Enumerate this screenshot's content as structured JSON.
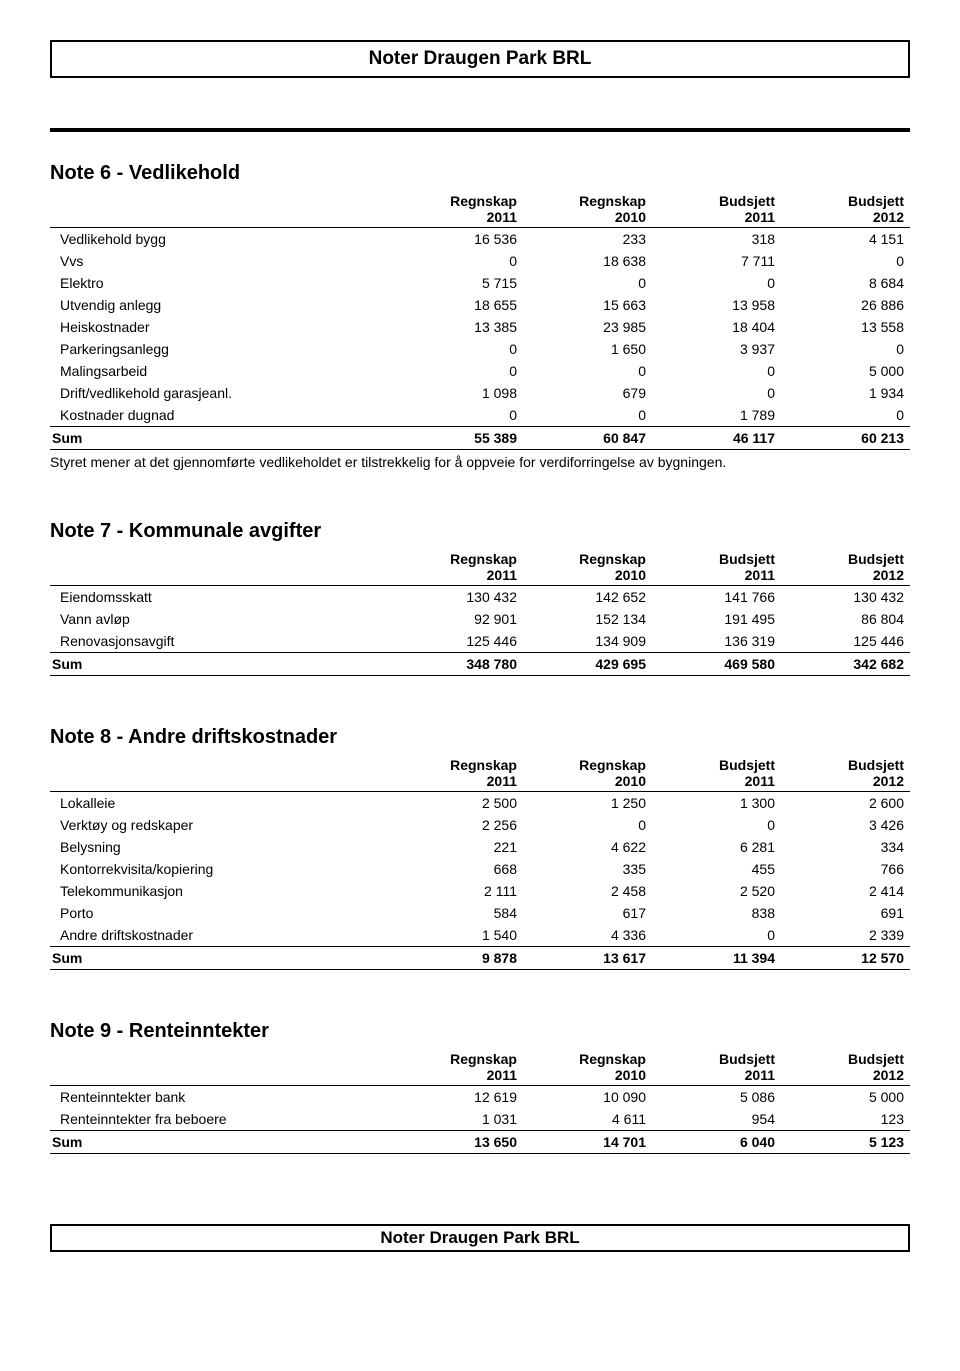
{
  "header_title": "Noter Draugen Park BRL",
  "footer_title": "Noter Draugen Park BRL",
  "columns": [
    {
      "line1": "Regnskap",
      "line2": "2011"
    },
    {
      "line1": "Regnskap",
      "line2": "2010"
    },
    {
      "line1": "Budsjett",
      "line2": "2011"
    },
    {
      "line1": "Budsjett",
      "line2": "2012"
    }
  ],
  "note6": {
    "title": "Note 6 - Vedlikehold",
    "rows": [
      {
        "label": "Vedlikehold bygg",
        "v": [
          "16 536",
          "233",
          "318",
          "4 151"
        ]
      },
      {
        "label": "Vvs",
        "v": [
          "0",
          "18 638",
          "7 711",
          "0"
        ]
      },
      {
        "label": "Elektro",
        "v": [
          "5 715",
          "0",
          "0",
          "8 684"
        ]
      },
      {
        "label": "Utvendig anlegg",
        "v": [
          "18 655",
          "15 663",
          "13 958",
          "26 886"
        ]
      },
      {
        "label": "Heiskostnader",
        "v": [
          "13 385",
          "23 985",
          "18 404",
          "13 558"
        ]
      },
      {
        "label": "Parkeringsanlegg",
        "v": [
          "0",
          "1 650",
          "3 937",
          "0"
        ]
      },
      {
        "label": "Malingsarbeid",
        "v": [
          "0",
          "0",
          "0",
          "5 000"
        ]
      },
      {
        "label": "Drift/vedlikehold garasjeanl.",
        "v": [
          "1 098",
          "679",
          "0",
          "1 934"
        ]
      },
      {
        "label": "Kostnader dugnad",
        "v": [
          "0",
          "0",
          "1 789",
          "0"
        ]
      }
    ],
    "sum": {
      "label": "Sum",
      "v": [
        "55 389",
        "60 847",
        "46 117",
        "60 213"
      ]
    },
    "footnote": "Styret mener at det gjennomførte vedlikeholdet er tilstrekkelig for å oppveie for verdiforringelse av bygningen."
  },
  "note7": {
    "title": "Note 7 - Kommunale avgifter",
    "rows": [
      {
        "label": "Eiendomsskatt",
        "v": [
          "130 432",
          "142 652",
          "141 766",
          "130 432"
        ]
      },
      {
        "label": "Vann avløp",
        "v": [
          "92 901",
          "152 134",
          "191 495",
          "86 804"
        ]
      },
      {
        "label": "Renovasjonsavgift",
        "v": [
          "125 446",
          "134 909",
          "136 319",
          "125 446"
        ]
      }
    ],
    "sum": {
      "label": "Sum",
      "v": [
        "348 780",
        "429 695",
        "469 580",
        "342 682"
      ]
    }
  },
  "note8": {
    "title": "Note 8 - Andre driftskostnader",
    "rows": [
      {
        "label": "Lokalleie",
        "v": [
          "2 500",
          "1 250",
          "1 300",
          "2 600"
        ]
      },
      {
        "label": "Verktøy og redskaper",
        "v": [
          "2 256",
          "0",
          "0",
          "3 426"
        ]
      },
      {
        "label": "Belysning",
        "v": [
          "221",
          "4 622",
          "6 281",
          "334"
        ]
      },
      {
        "label": "Kontorrekvisita/kopiering",
        "v": [
          "668",
          "335",
          "455",
          "766"
        ]
      },
      {
        "label": "Telekommunikasjon",
        "v": [
          "2 111",
          "2 458",
          "2 520",
          "2 414"
        ]
      },
      {
        "label": "Porto",
        "v": [
          "584",
          "617",
          "838",
          "691"
        ]
      },
      {
        "label": "Andre driftskostnader",
        "v": [
          "1 540",
          "4 336",
          "0",
          "2 339"
        ]
      }
    ],
    "sum": {
      "label": "Sum",
      "v": [
        "9 878",
        "13 617",
        "11 394",
        "12 570"
      ]
    }
  },
  "note9": {
    "title": "Note 9 - Renteinntekter",
    "rows": [
      {
        "label": "Renteinntekter bank",
        "v": [
          "12 619",
          "10 090",
          "5 086",
          "5 000"
        ]
      },
      {
        "label": "Renteinntekter fra beboere",
        "v": [
          "1 031",
          "4 611",
          "954",
          "123"
        ]
      }
    ],
    "sum": {
      "label": "Sum",
      "v": [
        "13 650",
        "14 701",
        "6 040",
        "5 123"
      ]
    }
  }
}
